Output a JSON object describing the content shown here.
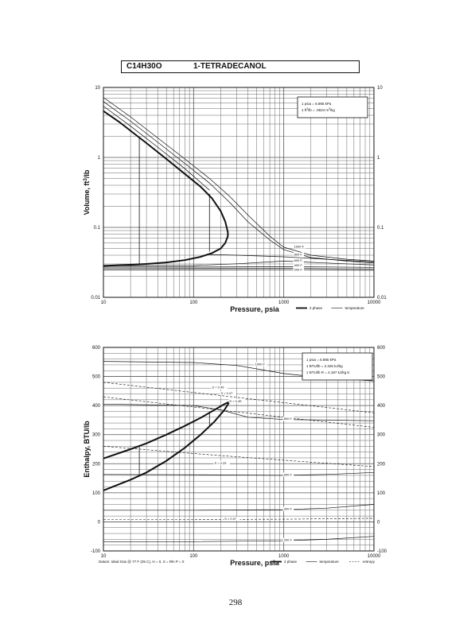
{
  "header": {
    "formula": "C14H30O",
    "compound": "1-TETRADECANOL"
  },
  "page_number": "298",
  "chart_data": [
    {
      "type": "line",
      "scale": {
        "x": "log",
        "y": "log"
      },
      "xlim": [
        10,
        10000
      ],
      "ylim": [
        0.01,
        10
      ],
      "xlabel": "Pressure,  psia",
      "ylabel": "Volume, ft^3/lb",
      "grid": true,
      "x_ticks": [
        {
          "value": 10,
          "label": "10"
        },
        {
          "value": 100,
          "label": "100"
        },
        {
          "value": 1000,
          "label": "1000"
        },
        {
          "value": 10000,
          "label": "10000"
        }
      ],
      "y_ticks": [
        {
          "value": 0.01,
          "label": "0.01"
        },
        {
          "value": 0.1,
          "label": "0.1"
        },
        {
          "value": 1,
          "label": "1"
        },
        {
          "value": 10,
          "label": "10"
        }
      ],
      "legend_box": [
        "1 psia  =  6.895 kPa",
        "1 ft^3/lb  =  .0624 m^3/kg"
      ],
      "legend": [
        {
          "name": "2 phase",
          "style": "thick"
        },
        {
          "name": "temperature",
          "style": "thin"
        }
      ],
      "series": [
        {
          "type": "2 phase",
          "x": [
            10,
            15,
            20,
            30,
            50,
            80,
            120,
            160,
            200,
            225,
            240,
            240,
            225,
            200,
            160,
            120,
            80,
            50,
            30,
            20,
            10
          ],
          "y": [
            4.6,
            3.2,
            2.4,
            1.6,
            0.95,
            0.58,
            0.38,
            0.26,
            0.17,
            0.12,
            0.085,
            0.075,
            0.06,
            0.05,
            0.043,
            0.038,
            0.034,
            0.0315,
            0.03,
            0.0292,
            0.0282
          ]
        },
        {
          "type": "temperature",
          "x": [
            10,
            20,
            40,
            80,
            150,
            250,
            400,
            700,
            1000,
            2000,
            5000,
            10000
          ],
          "y": [
            7.2,
            3.8,
            1.9,
            0.95,
            0.5,
            0.28,
            0.15,
            0.075,
            0.052,
            0.04,
            0.035,
            0.033
          ]
        },
        {
          "type": "temperature",
          "x": [
            10,
            20,
            40,
            80,
            150,
            250,
            400,
            700,
            1000,
            2000,
            5000,
            10000
          ],
          "y": [
            6.3,
            3.3,
            1.65,
            0.82,
            0.43,
            0.23,
            0.12,
            0.066,
            0.048,
            0.037,
            0.033,
            0.031
          ]
        },
        {
          "type": "temperature",
          "x": [
            10,
            20,
            40,
            80,
            150
          ],
          "y": [
            5.4,
            2.8,
            1.4,
            0.69,
            0.34
          ]
        },
        {
          "type": "temperature",
          "x": [
            150,
            300,
            1000,
            3000,
            10000
          ],
          "y": [
            0.041,
            0.04,
            0.038,
            0.035,
            0.032
          ]
        },
        {
          "type": "temperature",
          "x": [
            10,
            100,
            300,
            1000,
            3000,
            10000
          ],
          "y": [
            0.0282,
            0.0285,
            0.0302,
            0.033,
            0.031,
            0.029
          ]
        },
        {
          "type": "temperature",
          "x": [
            10,
            100,
            1000,
            3000,
            10000
          ],
          "y": [
            0.027,
            0.0271,
            0.0274,
            0.0272,
            0.0268
          ]
        },
        {
          "type": "temperature",
          "x": [
            10,
            100,
            1000,
            3000,
            10000
          ],
          "y": [
            0.0258,
            0.0259,
            0.026,
            0.0258,
            0.0255
          ]
        },
        {
          "type": "temperature",
          "x": [
            10,
            100,
            1000,
            3000,
            10000
          ],
          "y": [
            0.0247,
            0.0247,
            0.0248,
            0.0246,
            0.0244
          ]
        }
      ],
      "curve_labels": [
        {
          "text": "1000 F",
          "x": 1300,
          "y": 0.052
        },
        {
          "text": "800 F",
          "x": 1300,
          "y": 0.04
        },
        {
          "text": "600 F",
          "x": 1300,
          "y": 0.033
        },
        {
          "text": "400 F",
          "x": 1300,
          "y": 0.028
        },
        {
          "text": "200 F",
          "x": 1300,
          "y": 0.0243
        }
      ],
      "tie_lines": [
        {
          "x": 25,
          "y_top": 1.9,
          "y_bottom": 0.0297
        },
        {
          "x": 150,
          "y_top": 0.3,
          "y_bottom": 0.045
        }
      ]
    },
    {
      "type": "line",
      "scale": {
        "x": "log",
        "y": "linear"
      },
      "xlim": [
        10,
        10000
      ],
      "ylim": [
        -100,
        600
      ],
      "xlabel": "Pressure,  psia",
      "ylabel": "Enthalpy, BTU/lb",
      "grid": true,
      "x_ticks": [
        {
          "value": 10,
          "label": "10"
        },
        {
          "value": 100,
          "label": "100"
        },
        {
          "value": 1000,
          "label": "1000"
        },
        {
          "value": 10000,
          "label": "10000"
        }
      ],
      "y_ticks": [
        {
          "value": -100,
          "label": "-100"
        },
        {
          "value": 0,
          "label": "0"
        },
        {
          "value": 100,
          "label": "100"
        },
        {
          "value": 200,
          "label": "200"
        },
        {
          "value": 300,
          "label": "300"
        },
        {
          "value": 400,
          "label": "400"
        },
        {
          "value": 500,
          "label": "500"
        },
        {
          "value": 600,
          "label": "600"
        }
      ],
      "legend_box": [
        "1 psia  =  6.895 kPa",
        "1 BTU/lb  =  2.326 kJ/kg",
        "1 BTU/lb R  =  4.187 kJ/kg K"
      ],
      "legend": [
        {
          "name": "2 phase",
          "style": "thick"
        },
        {
          "name": "temperature",
          "style": "thin"
        },
        {
          "name": "entropy",
          "style": "dashed"
        }
      ],
      "footnote": "Datum: Ideal Gas @ 77 F (25 C),  H  =  0,  S  =  Rln P  =  0",
      "series": [
        {
          "type": "2 phase",
          "x": [
            10,
            20,
            30,
            50,
            80,
            120,
            170,
            220,
            250
          ],
          "y": [
            218,
            250,
            270,
            300,
            330,
            358,
            385,
            405,
            413
          ]
        },
        {
          "type": "2 phase",
          "x": [
            10,
            20,
            30,
            50,
            80,
            120,
            170,
            220,
            250
          ],
          "y": [
            108,
            145,
            170,
            210,
            255,
            300,
            345,
            385,
            413
          ]
        },
        {
          "type": "temperature",
          "x": [
            10,
            100,
            300,
            600,
            1000,
            3000,
            10000
          ],
          "y": [
            552,
            548,
            538,
            522,
            510,
            495,
            485
          ]
        },
        {
          "type": "temperature",
          "x": [
            10,
            100,
            200,
            400,
            1000,
            3000,
            10000
          ],
          "y": [
            405,
            400,
            385,
            360,
            352,
            350,
            348
          ]
        },
        {
          "type": "temperature",
          "x": [
            10,
            100,
            1000,
            3000,
            10000
          ],
          "y": [
            163,
            162,
            160,
            163,
            170
          ]
        },
        {
          "type": "temperature",
          "x": [
            10,
            100,
            1000,
            3000,
            10000
          ],
          "y": [
            40,
            40,
            42,
            47,
            60
          ]
        },
        {
          "type": "temperature",
          "x": [
            10,
            100,
            1000,
            3000,
            10000
          ],
          "y": [
            -68,
            -68,
            -65,
            -60,
            -50
          ]
        },
        {
          "type": "entropy",
          "x": [
            10,
            100,
            1000,
            10000
          ],
          "y": [
            480,
            445,
            410,
            375
          ]
        },
        {
          "type": "entropy",
          "x": [
            10,
            100,
            1000,
            10000
          ],
          "y": [
            430,
            395,
            360,
            325
          ]
        },
        {
          "type": "entropy",
          "x": [
            10,
            100,
            1000,
            10000
          ],
          "y": [
            260,
            235,
            212,
            190
          ]
        },
        {
          "type": "entropy",
          "x": [
            10,
            100,
            1000,
            10000
          ],
          "y": [
            8,
            8,
            9,
            12
          ]
        }
      ],
      "curve_labels": [
        {
          "text": "1000 F",
          "x": 480,
          "y": 540
        },
        {
          "text": "800 F",
          "x": 1000,
          "y": 352
        },
        {
          "text": "600 F",
          "x": 1000,
          "y": 160
        },
        {
          "text": "400 F",
          "x": 1000,
          "y": 42
        },
        {
          "text": "200 F",
          "x": 1000,
          "y": -65
        },
        {
          "text": "S = 0.45",
          "x": 160,
          "y": 460
        },
        {
          "text": "S = 0.47",
          "x": 200,
          "y": 440
        },
        {
          "text": "S = 0.45",
          "x": 250,
          "y": 413
        },
        {
          "text": "S = 0.25",
          "x": 170,
          "y": 200
        },
        {
          "text": "S = 0.07",
          "x": 220,
          "y": 8
        }
      ],
      "tie_lines": [
        {
          "x": 25,
          "y_top": 262,
          "y_bottom": 160
        },
        {
          "x": 150,
          "y_top": 375,
          "y_bottom": 330
        }
      ]
    }
  ]
}
